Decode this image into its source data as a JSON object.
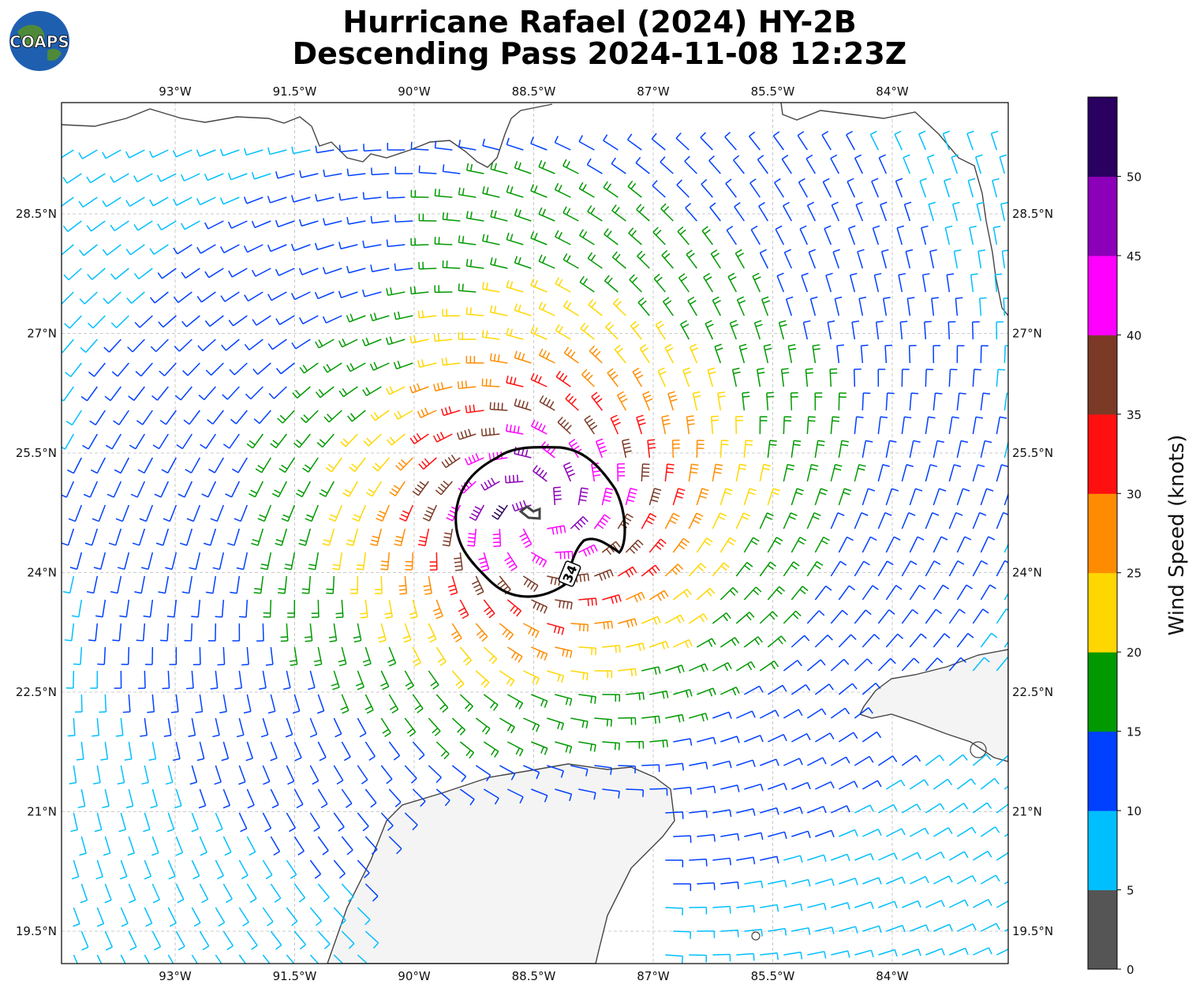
{
  "header": {
    "title_line1": "Hurricane Rafael (2024) HY-2B",
    "title_line2": "Descending Pass 2024-11-08 12:23Z",
    "logo_text": "COAPS"
  },
  "map": {
    "lon_labels": [
      "93°W",
      "91.5°W",
      "90°W",
      "88.5°W",
      "87°W",
      "85.5°W",
      "84°W"
    ],
    "lat_labels": [
      "28.5°N",
      "27°N",
      "25.5°N",
      "24°N",
      "22.5°N",
      "21°N",
      "19.5°N"
    ],
    "contour_label": "34"
  },
  "colorbar": {
    "label": "Wind Speed (knots)",
    "ticks": [
      "0",
      "5",
      "10",
      "15",
      "20",
      "25",
      "30",
      "35",
      "40",
      "45",
      "50"
    ],
    "colors": [
      "#555555",
      "#00bfff",
      "#0040ff",
      "#009900",
      "#ffd700",
      "#ff8c00",
      "#ff1010",
      "#7b3a26",
      "#ff00ff",
      "#8b00b8",
      "#2a0060"
    ]
  },
  "chart_data": {
    "type": "wind-barb map",
    "lon_ticks": [
      -93,
      -91.5,
      -90,
      -88.5,
      -87,
      -85.5,
      -84
    ],
    "lat_ticks": [
      28.5,
      27,
      25.5,
      24,
      22.5,
      21,
      19.5
    ],
    "storm_center": [
      -88.45,
      24.75
    ],
    "speed_bins_knots": [
      0,
      5,
      10,
      15,
      20,
      25,
      30,
      35,
      40,
      45,
      50,
      55
    ]
  }
}
